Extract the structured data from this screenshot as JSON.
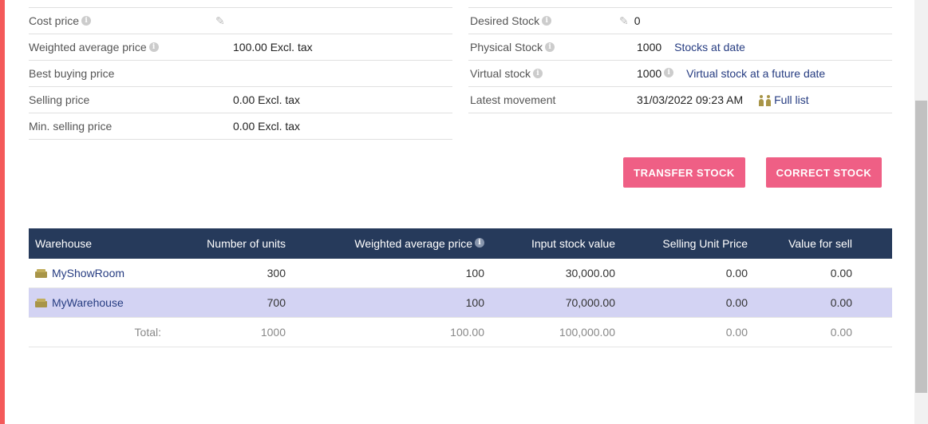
{
  "left_fields": [
    {
      "label": "Cost price",
      "value": "",
      "info": true,
      "editable": true
    },
    {
      "label": "Weighted average price",
      "value": "100.00 Excl. tax",
      "info": true,
      "editable": false
    },
    {
      "label": "Best buying price",
      "value": "",
      "info": false,
      "editable": false
    },
    {
      "label": "Selling price",
      "value": "0.00 Excl. tax",
      "info": false,
      "editable": false
    },
    {
      "label": "Min. selling price",
      "value": "0.00 Excl. tax",
      "info": false,
      "editable": false
    }
  ],
  "right_fields": {
    "desired_stock": {
      "label": "Desired Stock",
      "value": "0"
    },
    "physical_stock": {
      "label": "Physical Stock",
      "value": "1000",
      "link": "Stocks at date"
    },
    "virtual_stock": {
      "label": "Virtual stock",
      "value": "1000",
      "link": "Virtual stock at a future date"
    },
    "latest_movement": {
      "label": "Latest movement",
      "value": "31/03/2022 09:23 AM",
      "link": "Full list"
    }
  },
  "buttons": {
    "transfer": "TRANSFER STOCK",
    "correct": "CORRECT STOCK"
  },
  "colors": {
    "accent": "#ef5f85",
    "header_bg": "#263a5b",
    "highlight_row": "#d3d3f3",
    "left_bar": "#f45a5a",
    "link": "#263c81"
  },
  "stock_table": {
    "headers": [
      "Warehouse",
      "Number of units",
      "Weighted average price",
      "Input stock value",
      "Selling Unit Price",
      "Value for sell"
    ],
    "rows": [
      {
        "warehouse": "MyShowRoom",
        "units": "300",
        "wap": "100",
        "input_value": "30,000.00",
        "sell_unit": "0.00",
        "sell_value": "0.00"
      },
      {
        "warehouse": "MyWarehouse",
        "units": "700",
        "wap": "100",
        "input_value": "70,000.00",
        "sell_unit": "0.00",
        "sell_value": "0.00"
      }
    ],
    "total": {
      "label": "Total:",
      "units": "1000",
      "wap": "100.00",
      "input_value": "100,000.00",
      "sell_unit": "0.00",
      "sell_value": "0.00"
    }
  }
}
